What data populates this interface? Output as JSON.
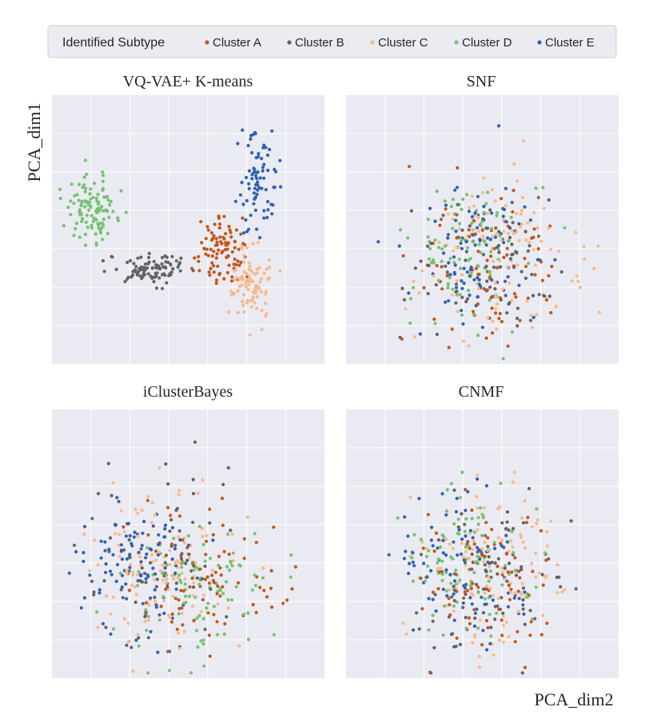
{
  "chart_data": {
    "type": "scatter",
    "xlabel": "PCA_dim2",
    "ylabel": "PCA_dim1",
    "legend": {
      "title": "Identified Subtype",
      "position": "top",
      "entries": [
        {
          "name": "Cluster A",
          "color": "#c2571a"
        },
        {
          "name": "Cluster B",
          "color": "#636363"
        },
        {
          "name": "Cluster C",
          "color": "#f8b98b"
        },
        {
          "name": "Cluster D",
          "color": "#74c36f"
        },
        {
          "name": "Cluster E",
          "color": "#2f62b0"
        }
      ]
    },
    "grid": true,
    "tick_labels_visible": false,
    "xlim": [
      -3.4,
      4.0
    ],
    "ylim": [
      -3.2,
      4.4
    ],
    "panels": [
      {
        "title": "VQ-VAE+ K-means",
        "layout": "separated",
        "clusters": [
          {
            "name": "Cluster D",
            "center": [
              -2.3,
              1.2
            ],
            "spread": [
              0.35,
              0.45
            ],
            "count": 110
          },
          {
            "name": "Cluster B",
            "center": [
              -0.7,
              -0.5
            ],
            "spread": [
              0.55,
              0.22
            ],
            "count": 95
          },
          {
            "name": "Cluster A",
            "center": [
              1.2,
              0.0
            ],
            "spread": [
              0.35,
              0.5
            ],
            "count": 95
          },
          {
            "name": "Cluster C",
            "center": [
              2.0,
              -0.9
            ],
            "spread": [
              0.25,
              0.5
            ],
            "count": 90
          },
          {
            "name": "Cluster E",
            "center": [
              2.2,
              2.0
            ],
            "spread": [
              0.25,
              0.7
            ],
            "count": 80
          }
        ]
      },
      {
        "title": "SNF",
        "layout": "mixed",
        "clusters": [
          {
            "name": "Cluster A",
            "center": [
              0.4,
              -0.5
            ],
            "spread": [
              0.9,
              1.0
            ],
            "count": 85
          },
          {
            "name": "Cluster B",
            "center": [
              0.3,
              -0.3
            ],
            "spread": [
              1.0,
              1.0
            ],
            "count": 80
          },
          {
            "name": "Cluster C",
            "center": [
              0.9,
              -0.2
            ],
            "spread": [
              1.0,
              1.2
            ],
            "count": 110
          },
          {
            "name": "Cluster D",
            "center": [
              0.0,
              0.0
            ],
            "spread": [
              0.9,
              1.1
            ],
            "count": 95
          },
          {
            "name": "Cluster E",
            "center": [
              0.0,
              0.0
            ],
            "spread": [
              0.8,
              1.1
            ],
            "count": 95
          }
        ]
      },
      {
        "title": "iClusterBayes",
        "layout": "mixed",
        "clusters": [
          {
            "name": "Cluster A",
            "center": [
              0.8,
              -0.6
            ],
            "spread": [
              1.0,
              0.9
            ],
            "count": 85
          },
          {
            "name": "Cluster B",
            "center": [
              -0.6,
              0.2
            ],
            "spread": [
              0.9,
              1.1
            ],
            "count": 80
          },
          {
            "name": "Cluster C",
            "center": [
              -0.4,
              0.0
            ],
            "spread": [
              0.9,
              1.1
            ],
            "count": 110
          },
          {
            "name": "Cluster D",
            "center": [
              0.6,
              -0.6
            ],
            "spread": [
              1.0,
              0.9
            ],
            "count": 95
          },
          {
            "name": "Cluster E",
            "center": [
              -1.0,
              -0.2
            ],
            "spread": [
              0.8,
              1.0
            ],
            "count": 100
          }
        ]
      },
      {
        "title": "CNMF",
        "layout": "mixed",
        "clusters": [
          {
            "name": "Cluster A",
            "center": [
              0.5,
              -0.4
            ],
            "spread": [
              0.9,
              1.0
            ],
            "count": 85
          },
          {
            "name": "Cluster B",
            "center": [
              0.4,
              -0.3
            ],
            "spread": [
              1.0,
              1.0
            ],
            "count": 80
          },
          {
            "name": "Cluster C",
            "center": [
              0.8,
              -0.2
            ],
            "spread": [
              1.0,
              1.2
            ],
            "count": 110
          },
          {
            "name": "Cluster D",
            "center": [
              0.0,
              0.0
            ],
            "spread": [
              0.9,
              1.1
            ],
            "count": 95
          },
          {
            "name": "Cluster E",
            "center": [
              -0.1,
              0.0
            ],
            "spread": [
              0.8,
              1.1
            ],
            "count": 95
          }
        ]
      }
    ]
  }
}
